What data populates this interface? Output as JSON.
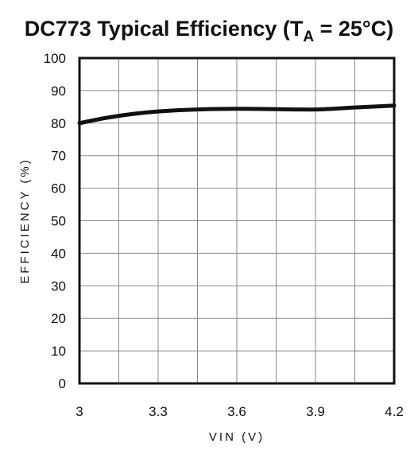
{
  "chart_data": {
    "type": "line",
    "title": {
      "prefix": "DC773 Typical Efficiency (T",
      "subscript": "A",
      "suffix": " = 25°C)"
    },
    "xlabel": "VIN (V)",
    "ylabel": "EFFICIENCY (%)",
    "xlim": [
      3,
      4.2
    ],
    "ylim": [
      0,
      100
    ],
    "xticks": [
      "3",
      "3.3",
      "3.6",
      "3.9",
      "4.2"
    ],
    "xtick_values": [
      3,
      3.3,
      3.6,
      3.9,
      4.2
    ],
    "yticks": [
      "0",
      "10",
      "20",
      "30",
      "40",
      "50",
      "60",
      "70",
      "80",
      "90",
      "100"
    ],
    "ytick_values": [
      0,
      10,
      20,
      30,
      40,
      50,
      60,
      70,
      80,
      90,
      100
    ],
    "x_minor_step": 0.15,
    "grid": true,
    "series": [
      {
        "x": [
          3.0,
          3.1,
          3.2,
          3.3,
          3.45,
          3.6,
          3.75,
          3.9,
          4.05,
          4.2
        ],
        "values": [
          80.0,
          81.6,
          82.8,
          83.6,
          84.2,
          84.4,
          84.3,
          84.2,
          84.8,
          85.4
        ]
      }
    ]
  }
}
